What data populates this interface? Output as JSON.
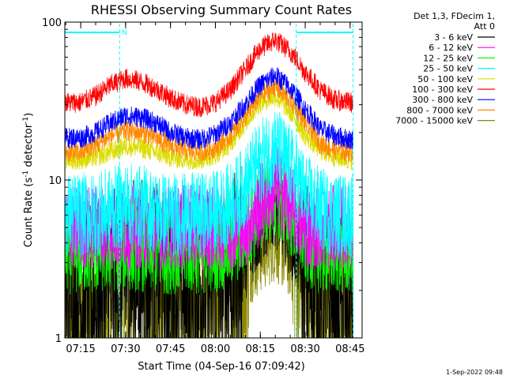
{
  "chart_data": {
    "type": "line",
    "title": "RHESSI Observing Summary Count Rates",
    "xlabel": "Start Time (04-Sep-16 07:09:42)",
    "ylabel": "Count Rate (s",
    "ylabel_sup1": "-1",
    "ylabel_mid": " detector",
    "ylabel_sup2": "-1",
    "ylabel_end": ")",
    "y_scale": "log",
    "ylim": [
      1,
      100
    ],
    "y_ticks": [
      "1",
      "10",
      "100"
    ],
    "xlim": [
      "07:09:42",
      "08:49:00"
    ],
    "x_ticks": [
      "07:15",
      "07:30",
      "07:45",
      "08:00",
      "08:15",
      "08:30",
      "08:45"
    ],
    "legend_header": [
      "Det 1,3, FDecim 1,",
      "Att 0"
    ],
    "legend_position": "right",
    "footer": "1-Sep-2022 09:48",
    "night_marker": "N",
    "data_window": [
      "07:09:42",
      "08:46:00"
    ],
    "night_intervals": [
      {
        "start": "07:09:42",
        "end": "07:28:00"
      },
      {
        "start": "08:27:00",
        "end": "08:46:00"
      }
    ],
    "series": [
      {
        "name": "3 - 6 keV",
        "color": "#000000",
        "x": [
          "07:15",
          "07:20",
          "07:25",
          "07:30",
          "07:35",
          "07:40",
          "07:45",
          "07:50",
          "07:55",
          "08:00",
          "08:05",
          "08:10",
          "08:15",
          "08:20",
          "08:25",
          "08:30",
          "08:35",
          "08:40",
          "08:45"
        ],
        "values": [
          1.8,
          1.7,
          2.0,
          2.4,
          2.5,
          2.3,
          2.2,
          2.0,
          2.1,
          2.0,
          2.4,
          3.2,
          5.0,
          7.0,
          4.5,
          2.5,
          1.7,
          1.6,
          1.6
        ]
      },
      {
        "name": "6 - 12 keV",
        "color": "#ff00ff",
        "x": [
          "07:15",
          "07:20",
          "07:25",
          "07:30",
          "07:35",
          "07:40",
          "07:45",
          "07:50",
          "07:55",
          "08:00",
          "08:05",
          "08:10",
          "08:15",
          "08:20",
          "08:25",
          "08:30",
          "08:35",
          "08:40",
          "08:45"
        ],
        "values": [
          5.0,
          5.0,
          5.0,
          5.0,
          5.0,
          5.0,
          5.0,
          5.0,
          5.0,
          5.0,
          5.0,
          5.2,
          7.0,
          9.5,
          7.0,
          5.0,
          5.0,
          5.0,
          5.0
        ]
      },
      {
        "name": "12 - 25 keV",
        "color": "#00ff00",
        "x": [
          "07:15",
          "07:20",
          "07:25",
          "07:30",
          "07:35",
          "07:40",
          "07:45",
          "07:50",
          "07:55",
          "08:00",
          "08:05",
          "08:10",
          "08:15",
          "08:20",
          "08:25",
          "08:30",
          "08:35",
          "08:40",
          "08:45"
        ],
        "values": [
          3.5,
          3.5,
          3.6,
          3.7,
          3.6,
          3.5,
          3.5,
          3.5,
          3.5,
          3.6,
          3.8,
          4.5,
          6.5,
          8.0,
          6.0,
          4.0,
          3.5,
          3.5,
          3.5
        ]
      },
      {
        "name": "25 - 50 keV",
        "color": "#00ffff",
        "x": [
          "07:15",
          "07:20",
          "07:25",
          "07:30",
          "07:35",
          "07:40",
          "07:45",
          "07:50",
          "07:55",
          "08:00",
          "08:05",
          "08:10",
          "08:15",
          "08:20",
          "08:25",
          "08:30",
          "08:35",
          "08:40",
          "08:45"
        ],
        "values": [
          6.0,
          6.0,
          6.5,
          7.0,
          6.8,
          6.3,
          6.0,
          6.0,
          6.0,
          6.3,
          7.0,
          9.0,
          13.0,
          16.0,
          12.0,
          8.0,
          6.5,
          6.0,
          6.0
        ]
      },
      {
        "name": "50 - 100 keV",
        "color": "#dddd00",
        "x": [
          "07:15",
          "07:20",
          "07:25",
          "07:30",
          "07:35",
          "07:40",
          "07:45",
          "07:50",
          "07:55",
          "08:00",
          "08:05",
          "08:10",
          "08:15",
          "08:20",
          "08:25",
          "08:30",
          "08:35",
          "08:40",
          "08:45"
        ],
        "values": [
          13.5,
          14.0,
          15.0,
          16.5,
          16.0,
          15.0,
          14.0,
          13.5,
          13.5,
          14.5,
          17.0,
          23.0,
          31.0,
          34.0,
          27.0,
          19.0,
          15.5,
          14.0,
          13.5
        ]
      },
      {
        "name": "100 - 300 keV",
        "color": "#ff0000",
        "x": [
          "07:15",
          "07:20",
          "07:25",
          "07:30",
          "07:35",
          "07:40",
          "07:45",
          "07:50",
          "07:55",
          "08:00",
          "08:05",
          "08:10",
          "08:15",
          "08:20",
          "08:25",
          "08:30",
          "08:35",
          "08:40",
          "08:45"
        ],
        "values": [
          31,
          34,
          40,
          44,
          42,
          38,
          33,
          30,
          29,
          31,
          37,
          50,
          68,
          77,
          65,
          48,
          37,
          32,
          31
        ]
      },
      {
        "name": "300 - 800 keV",
        "color": "#0000ff",
        "x": [
          "07:15",
          "07:20",
          "07:25",
          "07:30",
          "07:35",
          "07:40",
          "07:45",
          "07:50",
          "07:55",
          "08:00",
          "08:05",
          "08:10",
          "08:15",
          "08:20",
          "08:25",
          "08:30",
          "08:35",
          "08:40",
          "08:45"
        ],
        "values": [
          18.5,
          20,
          23,
          25.5,
          25,
          23,
          20,
          18.5,
          18,
          19.5,
          23,
          30,
          40,
          46,
          38,
          28,
          21,
          19,
          18
        ]
      },
      {
        "name": "800 - 7000 keV",
        "color": "#ff8800",
        "x": [
          "07:15",
          "07:20",
          "07:25",
          "07:30",
          "07:35",
          "07:40",
          "07:45",
          "07:50",
          "07:55",
          "08:00",
          "08:05",
          "08:10",
          "08:15",
          "08:20",
          "08:25",
          "08:30",
          "08:35",
          "08:40",
          "08:45"
        ],
        "values": [
          15,
          16.5,
          19,
          20.5,
          20,
          18.5,
          16.5,
          15.5,
          15,
          16,
          19,
          25,
          34,
          39,
          32,
          23,
          17,
          15.5,
          15
        ]
      },
      {
        "name": "7000 - 15000 keV",
        "color": "#888800",
        "x": [
          "07:15",
          "07:20",
          "07:25",
          "07:30",
          "07:35",
          "07:40",
          "07:45",
          "07:50",
          "07:55",
          "08:00",
          "08:05",
          "08:10",
          "08:15",
          "08:20",
          "08:25",
          "08:30",
          "08:35",
          "08:40",
          "08:45"
        ],
        "values": [
          1.4,
          1.5,
          1.8,
          2.3,
          2.4,
          2.1,
          1.8,
          1.6,
          1.7,
          1.8,
          2.2,
          2.8,
          3.5,
          4.2,
          3.2,
          2.0,
          1.5,
          1.4,
          1.4
        ]
      }
    ]
  }
}
